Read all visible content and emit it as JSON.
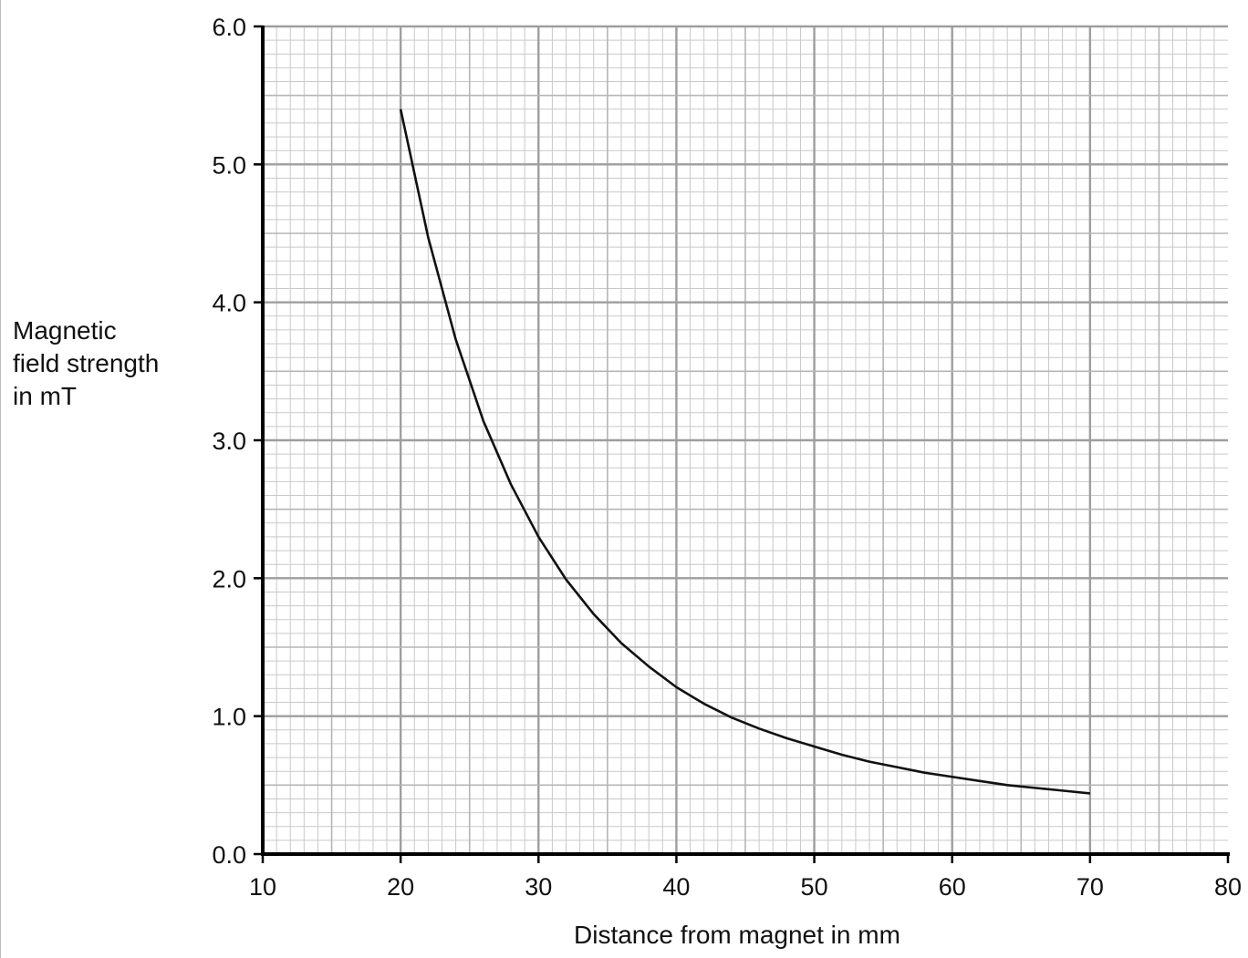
{
  "chart_data": {
    "type": "line",
    "title": "",
    "xlabel": "Distance from magnet in mm",
    "ylabel_lines": [
      "Magnetic",
      "field strength",
      "in mT"
    ],
    "xlim": [
      10,
      80
    ],
    "ylim": [
      0,
      6
    ],
    "x_ticks": [
      "10",
      "20",
      "30",
      "40",
      "50",
      "60",
      "70",
      "80"
    ],
    "y_ticks": [
      "0.0",
      "1.0",
      "2.0",
      "3.0",
      "4.0",
      "5.0",
      "6.0"
    ],
    "grid": true,
    "series": [
      {
        "x": [
          20,
          22,
          24,
          26,
          28,
          30,
          32,
          34,
          36,
          38,
          40,
          42,
          44,
          46,
          48,
          50,
          52,
          54,
          56,
          58,
          60,
          62,
          64,
          66,
          68,
          70
        ],
        "y": [
          5.4,
          4.47,
          3.73,
          3.14,
          2.68,
          2.3,
          1.99,
          1.74,
          1.53,
          1.36,
          1.21,
          1.09,
          0.99,
          0.91,
          0.84,
          0.78,
          0.72,
          0.67,
          0.63,
          0.59,
          0.56,
          0.53,
          0.5,
          0.48,
          0.46,
          0.44
        ],
        "color": "#111111"
      }
    ]
  }
}
